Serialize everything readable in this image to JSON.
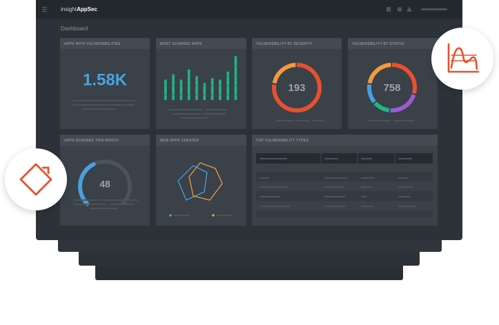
{
  "header": {
    "brand_light": "insight",
    "brand_bold": "AppSec"
  },
  "page_title": "Dashboard",
  "cards": [
    {
      "title": "APPS WITH VULNERABILITIES",
      "value": "1.58K"
    },
    {
      "title": "MOST SCANNED APPS",
      "bar_color": "#1fb883",
      "bars": [
        30,
        38,
        30,
        45,
        35,
        25,
        32,
        30,
        42,
        65
      ]
    },
    {
      "title": "VULNERABILITY BY SEVERITY",
      "value": 193,
      "segments": [
        {
          "color": "#e8502e",
          "value": 78
        },
        {
          "color": "#f29a3d",
          "value": 22
        }
      ]
    },
    {
      "title": "VULNERABILITY BY STATUS",
      "value": 758,
      "segments": [
        {
          "color": "#e8502e",
          "value": 30
        },
        {
          "color": "#9b5bd6",
          "value": 22
        },
        {
          "color": "#1fb883",
          "value": 12
        },
        {
          "color": "#4a9fe0",
          "value": 14
        },
        {
          "color": "#f29a3d",
          "value": 22
        }
      ]
    },
    {
      "title": "APPS SCANNED THIS MONTH",
      "value": 48,
      "gauge_fill": 40,
      "color": "#4a9fe0"
    },
    {
      "title": "NEW APPS CREATED"
    },
    {
      "title": "TOP VULNERABILITY TYPES"
    }
  ]
}
